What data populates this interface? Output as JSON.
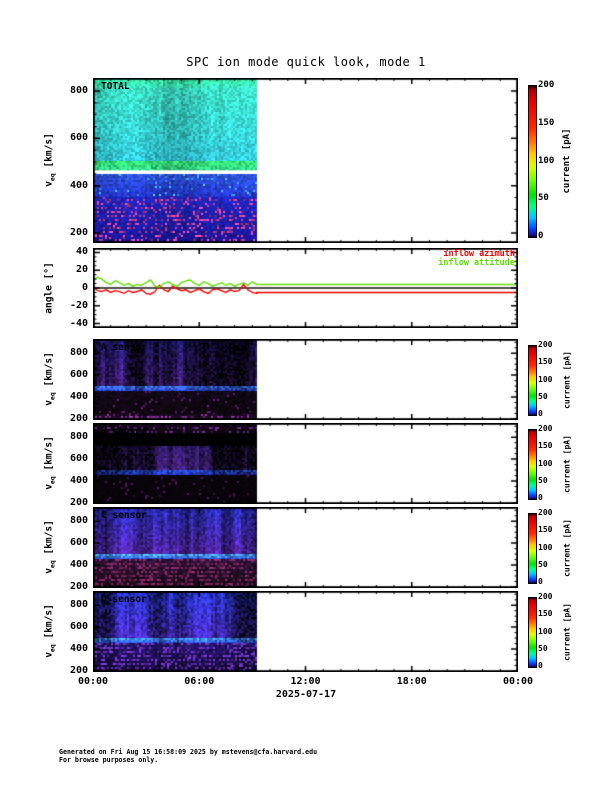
{
  "title": "SPC ion mode quick look, mode 1",
  "footer": {
    "line1": "Generated on Fri Aug 15 16:58:09 2025 by mstevens@cfa.harvard.edu",
    "line2": "For browse purposes only."
  },
  "x_axis": {
    "tick_labels": [
      "00:00",
      "06:00",
      "12:00",
      "18:00",
      "00:00"
    ],
    "date_label": "2025-07-17",
    "span_hours": 24,
    "major_step_hours": 6,
    "minor_step_hours": 1,
    "data_end_hour": 9.25
  },
  "colors": {
    "background": "#ffffff",
    "axis": "#000000",
    "azimuth_red": "#f20000",
    "attitude_green": "#5fe000",
    "colorbar_stops": [
      [
        0.0,
        "#05051e"
      ],
      [
        0.02,
        "#1616b4"
      ],
      [
        0.06,
        "#0050ff"
      ],
      [
        0.13,
        "#00c8ff"
      ],
      [
        0.2,
        "#00ff96"
      ],
      [
        0.28,
        "#00e600"
      ],
      [
        0.38,
        "#78ff00"
      ],
      [
        0.47,
        "#dcff00"
      ],
      [
        0.55,
        "#ffc800"
      ],
      [
        0.63,
        "#ff7800"
      ],
      [
        0.72,
        "#ff2800"
      ],
      [
        0.9,
        "#e60000"
      ],
      [
        0.97,
        "#b40000"
      ],
      [
        1.0,
        "#280000"
      ]
    ]
  },
  "chart_data": [
    {
      "id": "total",
      "type": "heatmap",
      "label": "TOTAL",
      "ylabel": {
        "main": "v",
        "sub": "eq",
        "rest": " [km/s]"
      },
      "yticks": [
        200,
        400,
        600,
        800
      ],
      "yrange": [
        158,
        855
      ],
      "y_minor_step": 50,
      "colorbar": {
        "label": "current [pA]",
        "ticks": [
          0,
          50,
          100,
          150,
          200
        ],
        "range": [
          0,
          200
        ]
      },
      "white_line_kms": 460,
      "bands": [
        {
          "y0": 0.0,
          "y1": 0.06,
          "top": "#38e09a",
          "bottom": "#3ae0c0",
          "base": 0.75,
          "colAmp": 0.35,
          "noise": 0.2
        },
        {
          "y0": 0.06,
          "y1": 0.502,
          "top": "#3ee2c8",
          "bottom": "#34c8da",
          "base": 0.72,
          "colAmp": 0.33,
          "noise": 0.18
        },
        {
          "y0": 0.502,
          "y1": 0.56,
          "top": "#36e06e",
          "bottom": "#2fd08c",
          "base": 0.78,
          "colAmp": 0.3,
          "noise": 0.22
        },
        {
          "y0": 0.579,
          "y1": 0.72,
          "top": "#2f55e6",
          "bottom": "#2336d2",
          "base": 0.75,
          "colAmp": 0.25,
          "noise": 0.22,
          "speckle": {
            "color": "#3a9ae0",
            "prob": 0.05,
            "rowPattern": true
          }
        },
        {
          "y0": 0.72,
          "y1": 1.0,
          "top": "#2128cc",
          "bottom": "#1a16a0",
          "base": 0.82,
          "colAmp": 0.15,
          "noise": 0.18,
          "speckle": {
            "color": "#c23a86",
            "prob": 0.17,
            "rowPattern": true
          }
        }
      ]
    },
    {
      "id": "angles",
      "type": "line",
      "ylabel": {
        "main": "angle [°]",
        "sub": "",
        "rest": ""
      },
      "yticks": [
        -40,
        -20,
        0,
        20,
        40
      ],
      "yrange": [
        -45,
        45
      ],
      "y_minor_step": 5,
      "zero_line": 0,
      "x_step_hours": 0.25,
      "flat_from_hour": 9.25,
      "series": [
        {
          "name": "inflow azimuth",
          "color": "#f20000",
          "flat_value": -5,
          "values": [
            2,
            -3,
            -4,
            -2,
            -5,
            -3,
            -4,
            -6,
            -3,
            -5,
            -4,
            -2,
            -6,
            -7,
            -4,
            3,
            -2,
            -4,
            2,
            -1,
            -3,
            -2,
            -5,
            -3,
            -1,
            -4,
            -6,
            -2,
            -1,
            -3,
            -5,
            -2,
            -4,
            -3,
            4,
            -2,
            -5,
            -6
          ]
        },
        {
          "name": "inflow attitude",
          "color": "#5fe000",
          "flat_value": 4,
          "values": [
            8,
            12,
            10,
            6,
            4,
            8,
            6,
            3,
            5,
            2,
            4,
            3,
            6,
            9,
            2,
            1,
            5,
            7,
            4,
            2,
            6,
            8,
            9,
            5,
            3,
            7,
            5,
            2,
            4,
            6,
            3,
            5,
            2,
            4,
            6,
            3,
            7,
            4
          ]
        }
      ]
    },
    {
      "id": "sensor_a",
      "type": "heatmap",
      "label": "A sensor",
      "ylabel": {
        "main": "v",
        "sub": "eq",
        "rest": " [km/s]"
      },
      "yticks": [
        200,
        400,
        600,
        800
      ],
      "yrange": [
        190,
        930
      ],
      "y_minor_step": 50,
      "colorbar": {
        "label": "current [pA]",
        "ticks": [
          0,
          50,
          100,
          150,
          200
        ],
        "range": [
          0,
          200
        ]
      },
      "bg": "#000000",
      "bands": [
        {
          "y0": 0.03,
          "y1": 0.58,
          "top": "#30249c",
          "bottom": "#5c2aa6",
          "base": 0.1,
          "colAmp": 1.05,
          "noise": 0.25,
          "envContrast": 2.2
        },
        {
          "y0": 0.58,
          "y1": 0.645,
          "top": "#3c78ff",
          "bottom": "#2a3ce0",
          "base": 0.5,
          "colAmp": 0.65,
          "noise": 0.35
        },
        {
          "y0": 0.645,
          "y1": 0.92,
          "top": "#120818",
          "bottom": "#0e060e",
          "base": 0.9,
          "colAmp": 0.2,
          "noise": 0.4,
          "speckle": {
            "color": "#4c1858",
            "prob": 0.05
          }
        },
        {
          "y0": 0.92,
          "y1": 1.0,
          "top": "#180a1e",
          "bottom": "#1e0c24",
          "base": 0.9,
          "colAmp": 0.2,
          "noise": 0.4,
          "speckle": {
            "color": "#7c2a8a",
            "prob": 0.22,
            "rowPattern": true
          }
        }
      ]
    },
    {
      "id": "sensor_b",
      "type": "heatmap",
      "label": "B sensor",
      "ylabel": {
        "main": "v",
        "sub": "eq",
        "rest": " [km/s]"
      },
      "yticks": [
        200,
        400,
        600,
        800
      ],
      "yrange": [
        190,
        930
      ],
      "y_minor_step": 50,
      "colorbar": {
        "label": "current [pA]",
        "ticks": [
          0,
          50,
          100,
          150,
          200
        ],
        "range": [
          0,
          200
        ]
      },
      "bg": "#000000",
      "bands": [
        {
          "y0": 0.0,
          "y1": 0.12,
          "top": "#150a1c",
          "bottom": "#0d060d",
          "base": 0.9,
          "colAmp": 0.3,
          "noise": 0.4,
          "speckle": {
            "color": "#582070",
            "prob": 0.16,
            "rowPattern": true
          }
        },
        {
          "y0": 0.28,
          "y1": 0.58,
          "top": "#351d73",
          "bottom": "#482384",
          "base": 0.1,
          "colAmp": 0.95,
          "noise": 0.3,
          "envContrast": 2.0
        },
        {
          "y0": 0.58,
          "y1": 0.64,
          "top": "#2b50e6",
          "bottom": "#2330b6",
          "base": 0.42,
          "colAmp": 0.6,
          "noise": 0.35
        },
        {
          "y0": 0.64,
          "y1": 1.0,
          "top": "#0a050c",
          "bottom": "#08040a",
          "base": 0.9,
          "colAmp": 0.2,
          "noise": 0.3,
          "speckle": {
            "color": "#3c1244",
            "prob": 0.04
          }
        }
      ]
    },
    {
      "id": "sensor_c",
      "type": "heatmap",
      "label": "C sensor",
      "ylabel": {
        "main": "v",
        "sub": "eq",
        "rest": " [km/s]"
      },
      "yticks": [
        200,
        400,
        600,
        800
      ],
      "yrange": [
        190,
        930
      ],
      "y_minor_step": 50,
      "colorbar": {
        "label": "current [pA]",
        "ticks": [
          0,
          50,
          100,
          150,
          200
        ],
        "range": [
          0,
          200
        ]
      },
      "bg": "#000000",
      "bands": [
        {
          "y0": 0.03,
          "y1": 0.58,
          "top": "#2d2fc2",
          "bottom": "#5a28b2",
          "base": 0.28,
          "colAmp": 0.85,
          "noise": 0.25,
          "envContrast": 1.6
        },
        {
          "y0": 0.58,
          "y1": 0.645,
          "top": "#49a2ff",
          "bottom": "#2b46e6",
          "base": 0.55,
          "colAmp": 0.55,
          "noise": 0.35
        },
        {
          "y0": 0.645,
          "y1": 1.0,
          "top": "#2c1034",
          "bottom": "#1a0a16",
          "base": 0.85,
          "colAmp": 0.25,
          "noise": 0.45,
          "speckle": {
            "color": "#6c2052",
            "prob": 0.28,
            "rowPattern": true
          }
        }
      ]
    },
    {
      "id": "sensor_d",
      "type": "heatmap",
      "label": "D sensor",
      "ylabel": {
        "main": "v",
        "sub": "eq",
        "rest": " [km/s]"
      },
      "yticks": [
        200,
        400,
        600,
        800
      ],
      "yrange": [
        190,
        930
      ],
      "y_minor_step": 50,
      "colorbar": {
        "label": "current [pA]",
        "ticks": [
          0,
          50,
          100,
          150,
          200
        ],
        "range": [
          0,
          200
        ]
      },
      "bg": "#000000",
      "bands": [
        {
          "y0": 0.03,
          "y1": 0.58,
          "top": "#2b36d2",
          "bottom": "#4a2cc2",
          "base": 0.3,
          "colAmp": 0.85,
          "noise": 0.3,
          "envContrast": 1.6
        },
        {
          "y0": 0.58,
          "y1": 0.645,
          "top": "#3f92ff",
          "bottom": "#2b42e2",
          "base": 0.55,
          "colAmp": 0.55,
          "noise": 0.35
        },
        {
          "y0": 0.645,
          "y1": 1.0,
          "top": "#221266",
          "bottom": "#160934",
          "base": 0.82,
          "colAmp": 0.3,
          "noise": 0.4,
          "speckle": {
            "color": "#5c2ca2",
            "prob": 0.26,
            "rowPattern": true
          }
        }
      ]
    }
  ]
}
